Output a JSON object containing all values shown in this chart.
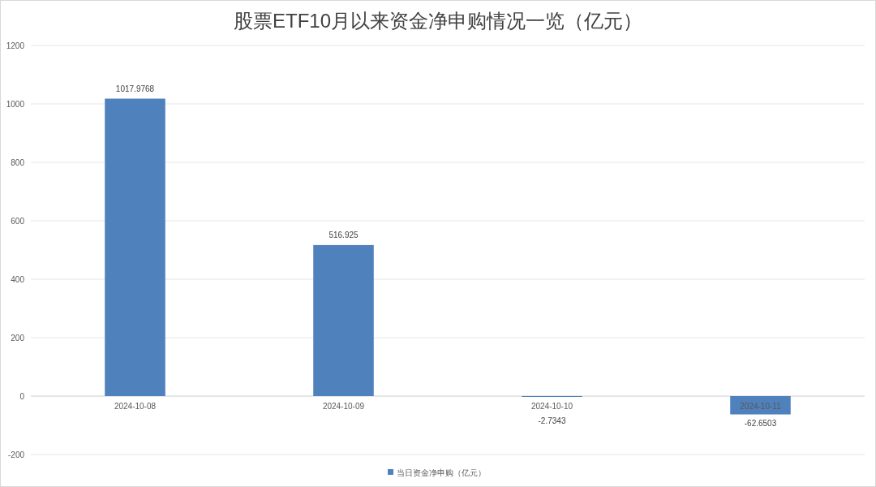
{
  "chart_data": {
    "type": "bar",
    "title": "股票ETF10月以来资金净申购情况一览（亿元）",
    "categories": [
      "2024-10-08",
      "2024-10-09",
      "2024-10-10",
      "2024-10-11"
    ],
    "series": [
      {
        "name": "当日资金净申购（亿元）",
        "color": "#4f81bd",
        "values": [
          1017.9768,
          516.925,
          -2.7343,
          -62.6503
        ]
      }
    ],
    "ylim": [
      -200,
      1200
    ],
    "yticks": [
      -200,
      0,
      200,
      400,
      600,
      800,
      1000,
      1200
    ],
    "grid": "y",
    "legend": "bottom",
    "data_labels": true
  }
}
